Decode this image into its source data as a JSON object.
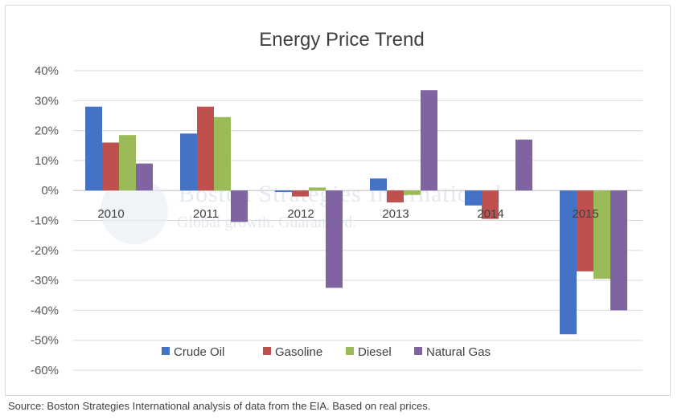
{
  "chart_data": {
    "type": "bar",
    "title": "Energy Price Trend",
    "categories": [
      "2010",
      "2011",
      "2012",
      "2013",
      "2014",
      "2015"
    ],
    "series": [
      {
        "name": "Crude Oil",
        "color": "#4472C4",
        "values": [
          28,
          19,
          -0.5,
          4,
          -5,
          -48
        ]
      },
      {
        "name": "Gasoline",
        "color": "#C0504D",
        "values": [
          16,
          28,
          -2,
          -4,
          -9.5,
          -27
        ]
      },
      {
        "name": "Diesel",
        "color": "#9BBB59",
        "values": [
          18.5,
          24.5,
          1,
          -1.5,
          0,
          -29.5
        ]
      },
      {
        "name": "Natural Gas",
        "color": "#8064A2",
        "values": [
          9,
          -10.5,
          -32.5,
          33.5,
          17,
          -40
        ]
      }
    ],
    "ylim": [
      -60,
      40
    ],
    "yticks": [
      "40%",
      "30%",
      "20%",
      "10%",
      "0%",
      "-10%",
      "-20%",
      "-30%",
      "-40%",
      "-50%",
      "-60%"
    ],
    "ytick_values": [
      40,
      30,
      20,
      10,
      0,
      -10,
      -20,
      -30,
      -40,
      -50,
      -60
    ],
    "grid": true,
    "legend_position": "bottom"
  },
  "watermark": {
    "line1": "Boston Strategies International",
    "line2": "Global growth. Guaranteed."
  },
  "source_note": "Source: Boston Strategies International analysis of data from the EIA. Based on real prices."
}
